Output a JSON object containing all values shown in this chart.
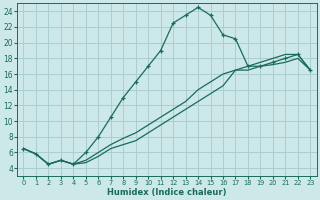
{
  "xlabel": "Humidex (Indice chaleur)",
  "ylabel": "",
  "background_color": "#cce8e8",
  "grid_color": "#aacece",
  "line_color": "#1a6b5a",
  "xlim": [
    -0.5,
    23.5
  ],
  "ylim": [
    3.0,
    25.0
  ],
  "yticks": [
    4,
    6,
    8,
    10,
    12,
    14,
    16,
    18,
    20,
    22,
    24
  ],
  "xticks": [
    0,
    1,
    2,
    3,
    4,
    5,
    6,
    7,
    8,
    9,
    10,
    11,
    12,
    13,
    14,
    15,
    16,
    17,
    18,
    19,
    20,
    21,
    22,
    23
  ],
  "line1_x": [
    0,
    1,
    2,
    3,
    4,
    5,
    6,
    7,
    8,
    9,
    10,
    11,
    12,
    13,
    14,
    15,
    16,
    17,
    18,
    19,
    20,
    21,
    22,
    23
  ],
  "line1_y": [
    6.5,
    5.8,
    4.5,
    5.0,
    4.5,
    6.0,
    8.0,
    10.5,
    13.0,
    15.0,
    17.0,
    19.0,
    22.5,
    23.5,
    24.5,
    23.5,
    21.0,
    20.5,
    17.0,
    17.0,
    17.5,
    18.0,
    18.5,
    16.5
  ],
  "line2_x": [
    0,
    1,
    2,
    3,
    4,
    5,
    6,
    7,
    8,
    9,
    10,
    11,
    12,
    13,
    14,
    15,
    16,
    17,
    18,
    19,
    20,
    21,
    22,
    23
  ],
  "line2_y": [
    6.5,
    5.8,
    4.5,
    5.0,
    4.5,
    4.7,
    5.5,
    6.5,
    7.0,
    7.5,
    8.5,
    9.5,
    10.5,
    11.5,
    12.5,
    13.5,
    14.5,
    16.5,
    16.5,
    17.0,
    17.2,
    17.5,
    18.0,
    16.5
  ],
  "line3_x": [
    0,
    1,
    2,
    3,
    4,
    5,
    6,
    7,
    8,
    9,
    10,
    11,
    12,
    13,
    14,
    15,
    16,
    17,
    18,
    19,
    20,
    21,
    22,
    23
  ],
  "line3_y": [
    6.5,
    5.8,
    4.5,
    5.0,
    4.5,
    5.0,
    6.0,
    7.0,
    7.8,
    8.5,
    9.5,
    10.5,
    11.5,
    12.5,
    14.0,
    15.0,
    16.0,
    16.5,
    17.0,
    17.5,
    18.0,
    18.5,
    18.5,
    16.5
  ]
}
